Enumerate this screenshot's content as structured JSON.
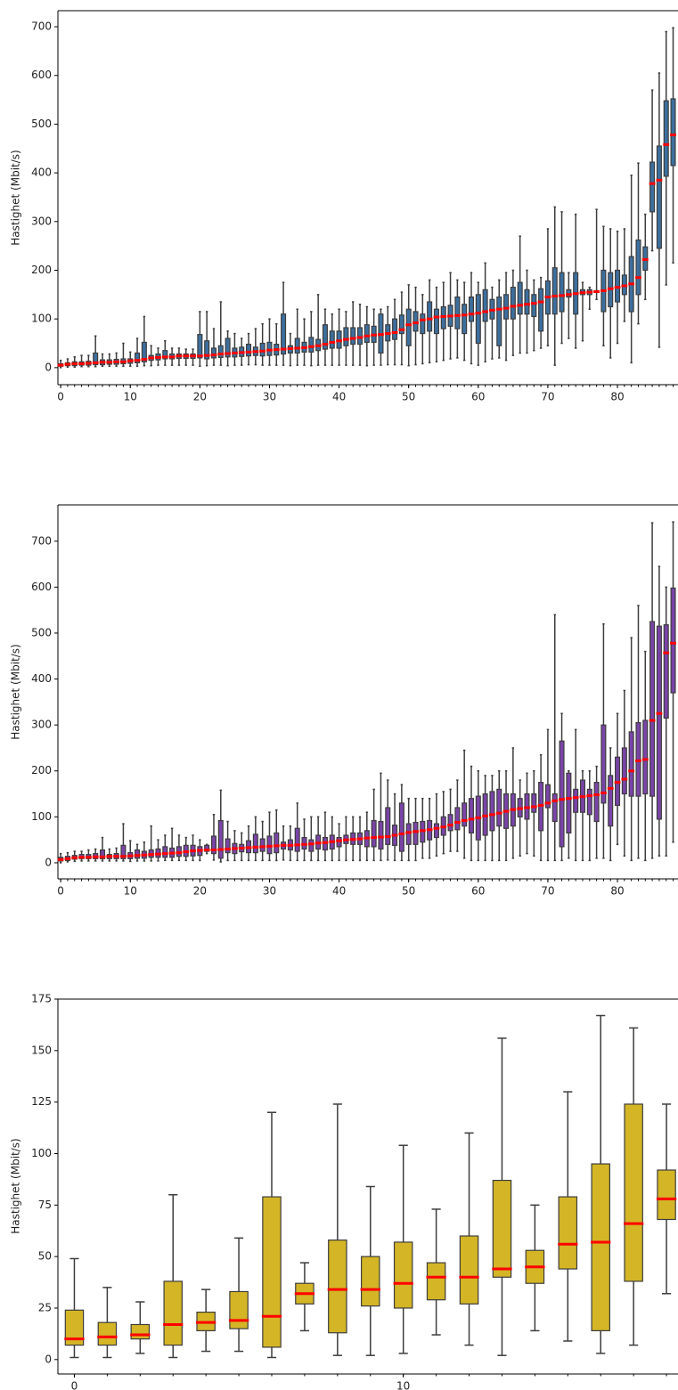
{
  "chart_data": [
    {
      "type": "box",
      "y_label": "Hastighet (Mbit/s)",
      "color": "#3d6f9e",
      "median_color": "#ff0000",
      "whisker_color": "#3d3d3d",
      "x": [
        0,
        1,
        2,
        3,
        4,
        5,
        6,
        7,
        8,
        9,
        10,
        11,
        12,
        13,
        14,
        15,
        16,
        17,
        18,
        19,
        20,
        21,
        22,
        23,
        24,
        25,
        26,
        27,
        28,
        29,
        30,
        31,
        32,
        33,
        34,
        35,
        36,
        37,
        38,
        39,
        40,
        41,
        42,
        43,
        44,
        45,
        46,
        47,
        48,
        49,
        50,
        51,
        52,
        53,
        54,
        55,
        56,
        57,
        58,
        59,
        60,
        61,
        62,
        63,
        64,
        65,
        66,
        67,
        68,
        69,
        70,
        71,
        72,
        73,
        74,
        75,
        76,
        77,
        78,
        79,
        80,
        81,
        82,
        83,
        84,
        85,
        86,
        87,
        88
      ],
      "xlim": [
        -0.4,
        88.7
      ],
      "xticks": [
        0,
        10,
        20,
        30,
        40,
        50,
        60,
        70,
        80
      ],
      "ylim": [
        -35,
        733
      ],
      "yticks": [
        0,
        100,
        200,
        300,
        400,
        500,
        600,
        700
      ],
      "boxes": {
        "whislo": [
          0,
          1,
          1,
          2,
          2,
          2,
          3,
          3,
          3,
          3,
          3,
          3,
          4,
          4,
          5,
          5,
          5,
          5,
          5,
          5,
          3,
          4,
          5,
          5,
          4,
          5,
          5,
          6,
          6,
          5,
          5,
          5,
          5,
          4,
          5,
          5,
          4,
          5,
          5,
          5,
          5,
          5,
          5,
          5,
          4,
          5,
          5,
          6,
          6,
          6,
          4,
          6,
          8,
          10,
          12,
          15,
          18,
          20,
          15,
          8,
          5,
          12,
          18,
          20,
          15,
          25,
          30,
          30,
          35,
          40,
          45,
          5,
          50,
          60,
          40,
          55,
          120,
          140,
          45,
          20,
          50,
          95,
          10,
          90,
          140,
          240,
          42,
          170,
          215
        ],
        "q1": [
          3,
          4,
          4,
          5,
          5,
          6,
          6,
          7,
          7,
          8,
          9,
          10,
          12,
          15,
          16,
          18,
          18,
          19,
          19,
          19,
          20,
          18,
          20,
          21,
          22,
          22,
          23,
          24,
          25,
          24,
          25,
          26,
          28,
          30,
          30,
          32,
          32,
          35,
          38,
          40,
          40,
          45,
          48,
          48,
          52,
          52,
          30,
          55,
          58,
          70,
          45,
          75,
          70,
          75,
          70,
          80,
          85,
          80,
          70,
          95,
          50,
          95,
          100,
          45,
          100,
          100,
          110,
          110,
          105,
          75,
          110,
          110,
          115,
          145,
          110,
          150,
          150,
          155,
          115,
          125,
          135,
          150,
          115,
          150,
          200,
          320,
          245,
          393,
          415
        ],
        "med": [
          5,
          7,
          8,
          8,
          9,
          10,
          11,
          11,
          12,
          12,
          14,
          15,
          17,
          20,
          21,
          22,
          22,
          24,
          24,
          24,
          24,
          25,
          26,
          28,
          29,
          30,
          31,
          32,
          33,
          34,
          36,
          37,
          38,
          39,
          40,
          41,
          43,
          45,
          48,
          52,
          55,
          58,
          60,
          62,
          65,
          67,
          68,
          70,
          72,
          78,
          88,
          92,
          98,
          100,
          104,
          105,
          106,
          107,
          108,
          110,
          112,
          115,
          118,
          120,
          122,
          126,
          128,
          130,
          132,
          135,
          145,
          147,
          148,
          150,
          152,
          154,
          155,
          156,
          158,
          162,
          165,
          168,
          172,
          185,
          222,
          378,
          385,
          458,
          478
        ],
        "q3": [
          8,
          10,
          12,
          12,
          13,
          30,
          16,
          16,
          17,
          18,
          18,
          30,
          52,
          25,
          28,
          35,
          28,
          28,
          28,
          28,
          68,
          55,
          40,
          45,
          60,
          40,
          42,
          48,
          42,
          50,
          52,
          48,
          110,
          45,
          60,
          52,
          62,
          58,
          88,
          75,
          75,
          82,
          82,
          82,
          88,
          85,
          110,
          88,
          100,
          108,
          120,
          115,
          110,
          135,
          120,
          125,
          128,
          145,
          130,
          145,
          150,
          160,
          140,
          145,
          150,
          165,
          175,
          160,
          150,
          162,
          178,
          205,
          195,
          160,
          195,
          160,
          160,
          158,
          200,
          195,
          200,
          190,
          228,
          262,
          248,
          422,
          455,
          548,
          552
        ],
        "whishi": [
          15,
          18,
          22,
          25,
          25,
          65,
          28,
          28,
          30,
          50,
          32,
          60,
          105,
          45,
          40,
          55,
          40,
          40,
          38,
          38,
          115,
          115,
          80,
          135,
          75,
          70,
          60,
          70,
          80,
          90,
          100,
          90,
          175,
          70,
          120,
          100,
          115,
          150,
          120,
          110,
          120,
          115,
          135,
          130,
          125,
          120,
          120,
          125,
          140,
          155,
          170,
          165,
          150,
          180,
          165,
          175,
          195,
          180,
          175,
          195,
          175,
          215,
          165,
          180,
          195,
          200,
          270,
          200,
          180,
          185,
          285,
          330,
          320,
          195,
          315,
          175,
          165,
          325,
          290,
          285,
          280,
          285,
          395,
          420,
          315,
          570,
          605,
          690,
          698
        ]
      }
    },
    {
      "type": "box",
      "y_label": "Hastighet (Mbit/s)",
      "color": "#7a44a8",
      "median_color": "#ff0000",
      "whisker_color": "#3d3d3d",
      "x": [
        0,
        1,
        2,
        3,
        4,
        5,
        6,
        7,
        8,
        9,
        10,
        11,
        12,
        13,
        14,
        15,
        16,
        17,
        18,
        19,
        20,
        21,
        22,
        23,
        24,
        25,
        26,
        27,
        28,
        29,
        30,
        31,
        32,
        33,
        34,
        35,
        36,
        37,
        38,
        39,
        40,
        41,
        42,
        43,
        44,
        45,
        46,
        47,
        48,
        49,
        50,
        51,
        52,
        53,
        54,
        55,
        56,
        57,
        58,
        59,
        60,
        61,
        62,
        63,
        64,
        65,
        66,
        67,
        68,
        69,
        70,
        71,
        72,
        73,
        74,
        75,
        76,
        77,
        78,
        79,
        80,
        81,
        82,
        83,
        84,
        85,
        86,
        87,
        88
      ],
      "xlim": [
        -0.4,
        88.7
      ],
      "xticks": [
        0,
        10,
        20,
        30,
        40,
        50,
        60,
        70,
        80
      ],
      "ylim": [
        -35,
        779
      ],
      "yticks": [
        0,
        100,
        200,
        300,
        400,
        500,
        600,
        700
      ],
      "boxes": {
        "whislo": [
          0,
          2,
          3,
          4,
          4,
          4,
          4,
          4,
          4,
          4,
          3,
          4,
          4,
          4,
          4,
          5,
          5,
          5,
          5,
          5,
          5,
          20,
          6,
          2,
          5,
          5,
          5,
          5,
          5,
          5,
          5,
          5,
          6,
          5,
          5,
          5,
          5,
          5,
          5,
          5,
          5,
          5,
          5,
          5,
          5,
          5,
          5,
          6,
          5,
          5,
          5,
          5,
          10,
          10,
          15,
          20,
          25,
          25,
          10,
          5,
          5,
          5,
          5,
          5,
          5,
          10,
          15,
          20,
          15,
          5,
          5,
          5,
          5,
          10,
          5,
          5,
          5,
          10,
          10,
          5,
          40,
          15,
          5,
          10,
          5,
          10,
          15,
          15,
          45
        ],
        "q1": [
          4,
          5,
          8,
          9,
          9,
          9,
          9,
          9,
          9,
          9,
          9,
          10,
          10,
          12,
          12,
          12,
          12,
          14,
          14,
          15,
          16,
          25,
          20,
          10,
          22,
          20,
          24,
          22,
          22,
          25,
          20,
          22,
          30,
          28,
          25,
          30,
          25,
          30,
          28,
          30,
          35,
          42,
          40,
          40,
          35,
          35,
          30,
          40,
          38,
          25,
          40,
          40,
          45,
          50,
          55,
          60,
          70,
          72,
          80,
          65,
          50,
          60,
          70,
          80,
          75,
          80,
          100,
          95,
          110,
          70,
          120,
          90,
          35,
          65,
          110,
          110,
          105,
          90,
          130,
          80,
          125,
          150,
          145,
          145,
          150,
          145,
          95,
          315,
          370
        ],
        "med": [
          7,
          9,
          11,
          12,
          12,
          13,
          13,
          14,
          14,
          14,
          15,
          16,
          17,
          18,
          19,
          20,
          21,
          22,
          24,
          26,
          27,
          28,
          28,
          29,
          30,
          31,
          32,
          33,
          34,
          35,
          36,
          37,
          38,
          38,
          39,
          40,
          41,
          43,
          44,
          46,
          48,
          50,
          51,
          52,
          54,
          55,
          56,
          57,
          60,
          63,
          66,
          68,
          70,
          72,
          75,
          78,
          82,
          88,
          92,
          95,
          98,
          102,
          105,
          108,
          112,
          116,
          118,
          120,
          122,
          125,
          130,
          135,
          138,
          140,
          142,
          144,
          146,
          148,
          152,
          162,
          175,
          182,
          200,
          222,
          225,
          310,
          325,
          457,
          478
        ],
        "q3": [
          12,
          14,
          16,
          18,
          18,
          20,
          28,
          18,
          20,
          38,
          22,
          28,
          25,
          28,
          30,
          35,
          32,
          35,
          38,
          38,
          35,
          38,
          58,
          92,
          52,
          42,
          40,
          48,
          62,
          52,
          58,
          65,
          45,
          50,
          75,
          55,
          50,
          60,
          55,
          60,
          55,
          60,
          65,
          65,
          70,
          92,
          90,
          120,
          82,
          130,
          85,
          88,
          90,
          92,
          85,
          100,
          105,
          120,
          130,
          140,
          145,
          150,
          155,
          160,
          150,
          150,
          140,
          150,
          150,
          175,
          170,
          150,
          265,
          195,
          160,
          180,
          160,
          175,
          300,
          190,
          230,
          250,
          285,
          305,
          310,
          525,
          515,
          518,
          598
        ],
        "whishi": [
          20,
          22,
          25,
          25,
          28,
          30,
          55,
          30,
          32,
          85,
          48,
          40,
          45,
          80,
          50,
          60,
          75,
          60,
          55,
          60,
          50,
          40,
          105,
          158,
          90,
          70,
          65,
          80,
          100,
          90,
          110,
          115,
          80,
          80,
          130,
          95,
          100,
          100,
          110,
          100,
          85,
          100,
          100,
          100,
          110,
          160,
          195,
          180,
          150,
          170,
          140,
          140,
          140,
          140,
          150,
          155,
          160,
          180,
          245,
          210,
          200,
          190,
          190,
          200,
          200,
          250,
          180,
          195,
          200,
          235,
          290,
          540,
          325,
          200,
          290,
          200,
          200,
          210,
          520,
          250,
          325,
          375,
          490,
          560,
          460,
          740,
          645,
          600,
          742
        ]
      }
    },
    {
      "type": "box",
      "y_label": "Hastighet (Mbit/s)",
      "color": "#d3b526",
      "median_color": "#ff0000",
      "whisker_color": "#3d3d3d",
      "x": [
        0,
        1,
        2,
        3,
        4,
        5,
        6,
        7,
        8,
        9,
        10,
        11,
        12,
        13,
        14,
        15,
        16,
        17,
        18
      ],
      "xlim": [
        -0.5,
        18.35
      ],
      "xticks": [
        0,
        10
      ],
      "ylim": [
        -7,
        175
      ],
      "yticks": [
        0,
        25,
        50,
        75,
        100,
        125,
        150,
        175
      ],
      "boxes": {
        "whislo": [
          1,
          1,
          3,
          1,
          4,
          4,
          1,
          14,
          2,
          2,
          3,
          12,
          7,
          2,
          14,
          9,
          3,
          7,
          32
        ],
        "q1": [
          7,
          7,
          10,
          7,
          14,
          15,
          6,
          27,
          13,
          26,
          25,
          29,
          27,
          40,
          37,
          44,
          14,
          38,
          68
        ],
        "med": [
          10,
          11,
          12,
          17,
          18,
          19,
          21,
          32,
          34,
          34,
          37,
          40,
          40,
          44,
          45,
          56,
          57,
          66,
          78
        ],
        "q3": [
          24,
          18,
          17,
          38,
          23,
          33,
          79,
          37,
          58,
          50,
          57,
          47,
          60,
          87,
          53,
          79,
          95,
          124,
          92
        ],
        "whishi": [
          49,
          35,
          28,
          80,
          34,
          59,
          120,
          47,
          124,
          84,
          104,
          73,
          110,
          156,
          75,
          130,
          167,
          161,
          124
        ]
      }
    }
  ]
}
